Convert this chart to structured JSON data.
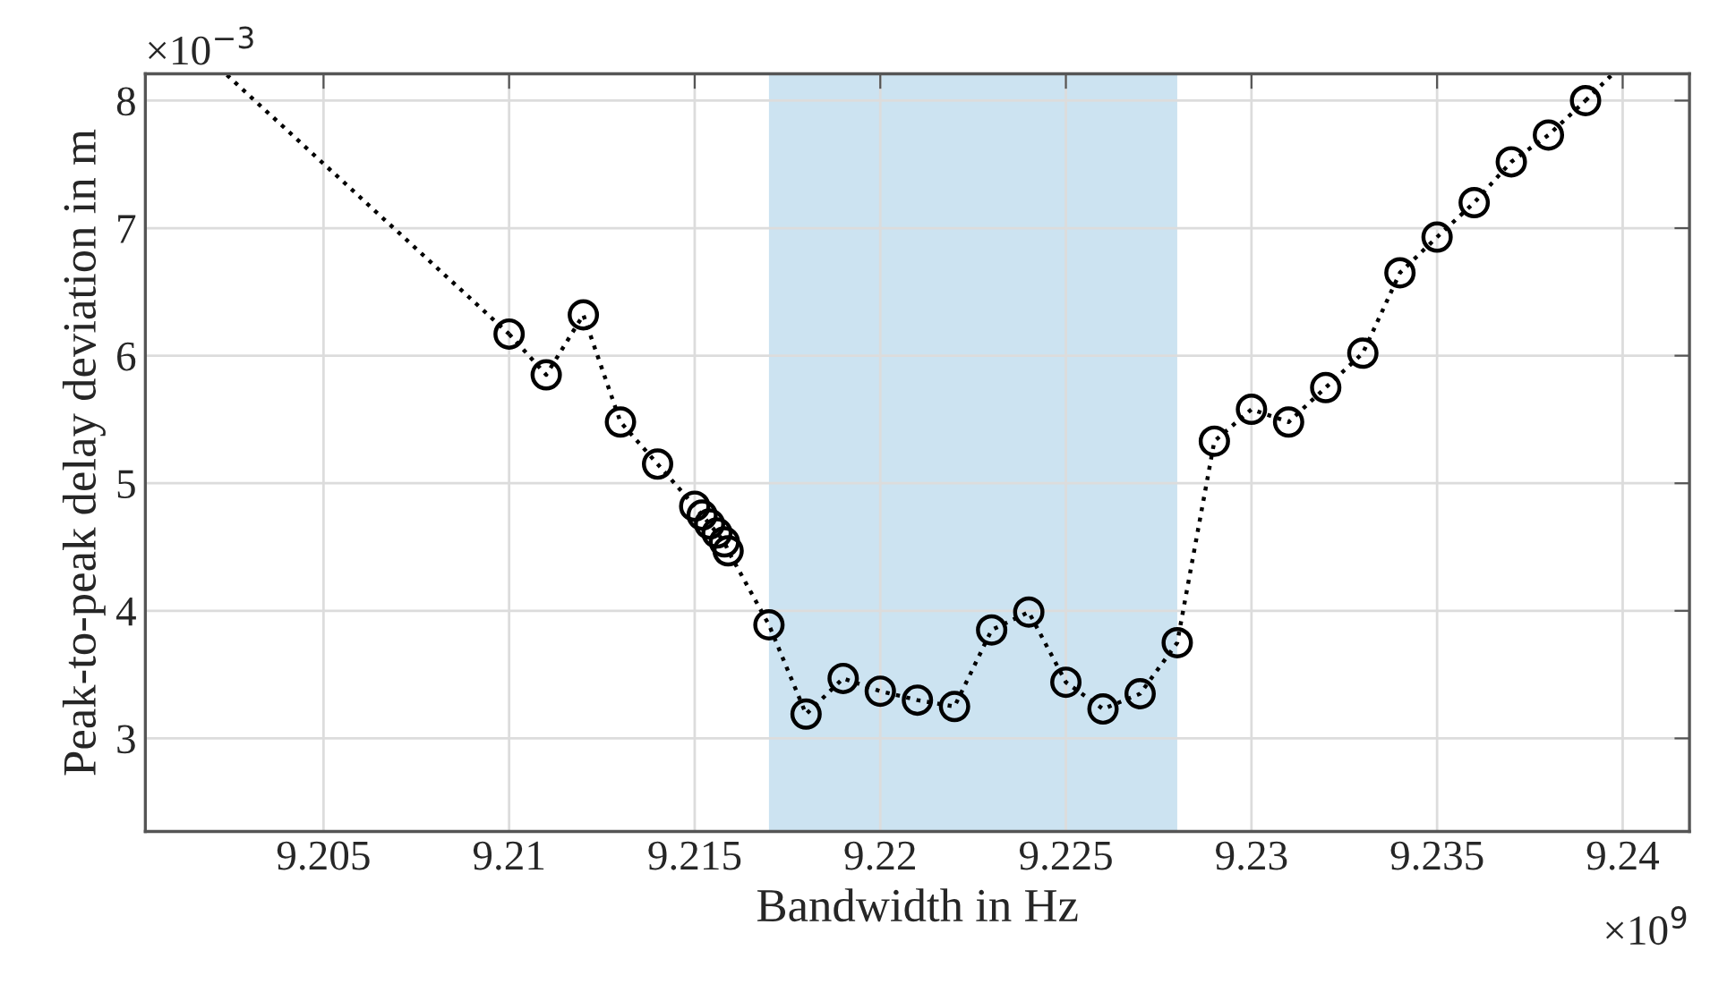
{
  "chart_data": {
    "type": "line",
    "xlabel": "Bandwidth in Hz",
    "ylabel": "Peak-to-peak delay deviation in m",
    "annotations": [
      "×10$^{−3}$",
      "×10$^{9}$"
    ],
    "xlim": [
      9.2002,
      9.2418
    ],
    "xticks": [
      9.205,
      9.21,
      9.215,
      9.22,
      9.225,
      9.23,
      9.235,
      9.24
    ],
    "ylim": [
      2.27,
      8.21
    ],
    "yticks": [
      3,
      4,
      5,
      6,
      7,
      8
    ],
    "grid": true,
    "line_style": "dotted",
    "bands": [
      {
        "axis": "x",
        "from": 9.217,
        "to": 9.228,
        "color": "#cce3f1"
      }
    ],
    "series": [
      {
        "color": "#000000",
        "x": [
          9.2024,
          9.21
        ],
        "values": [
          8.2,
          6.17
        ]
      },
      {
        "color": "#000000",
        "marker": "circle",
        "x": [
          9.21,
          9.211,
          9.212,
          9.213,
          9.214,
          9.215,
          9.2152,
          9.2154,
          9.2156,
          9.2158,
          9.2159,
          9.217,
          9.218,
          9.219,
          9.22,
          9.221,
          9.222,
          9.223,
          9.224,
          9.225,
          9.226,
          9.227,
          9.228,
          9.229,
          9.23,
          9.231,
          9.232,
          9.233,
          9.234,
          9.235,
          9.236,
          9.237,
          9.238,
          9.239
        ],
        "values": [
          6.17,
          5.85,
          6.32,
          5.48,
          5.15,
          4.82,
          4.75,
          4.68,
          4.61,
          4.54,
          4.47,
          3.89,
          3.19,
          3.47,
          3.37,
          3.3,
          3.25,
          3.85,
          3.99,
          3.44,
          3.23,
          3.35,
          3.75,
          5.33,
          5.58,
          5.48,
          5.75,
          6.02,
          6.65,
          6.93,
          7.2,
          7.52,
          7.73,
          8.0
        ]
      },
      {
        "color": "#000000",
        "x": [
          9.239,
          9.2397
        ],
        "values": [
          8.0,
          8.2
        ]
      }
    ]
  }
}
